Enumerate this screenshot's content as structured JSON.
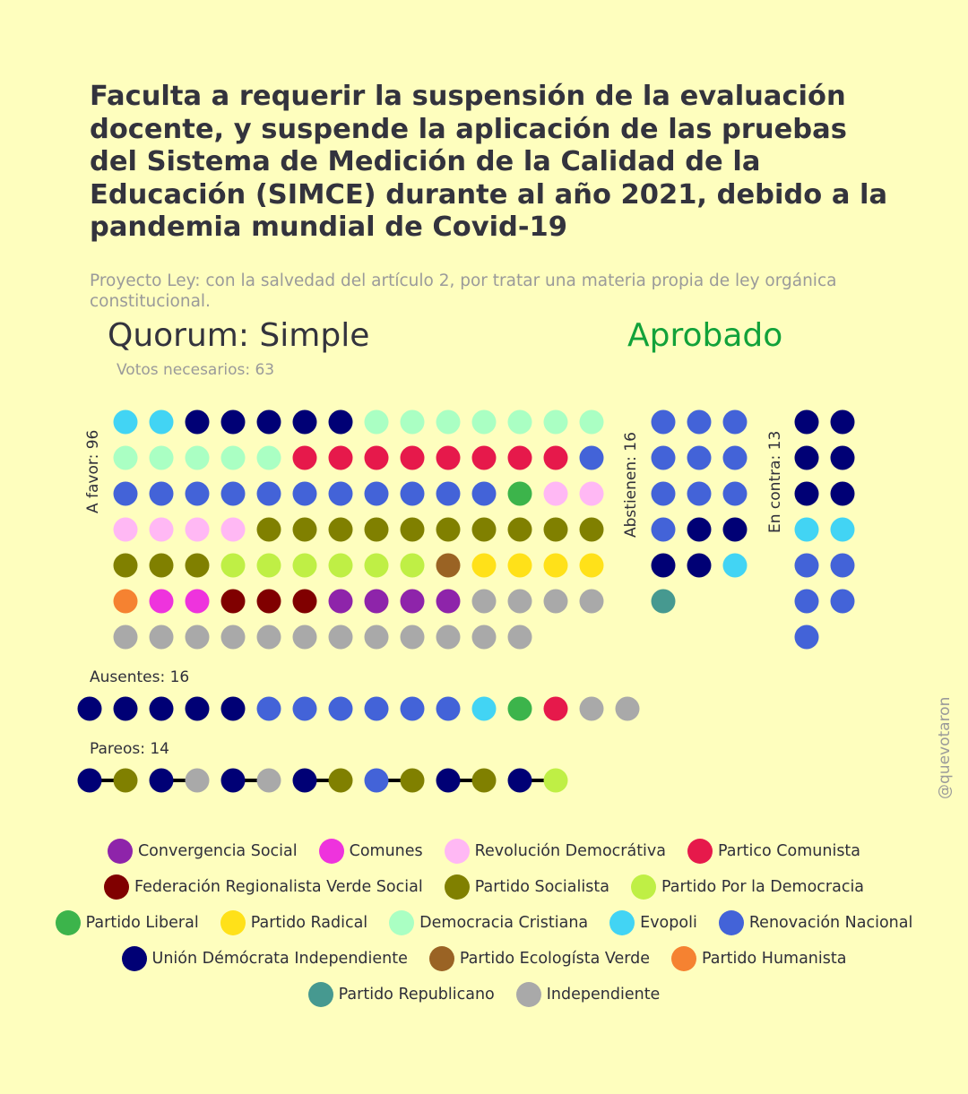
{
  "title": "Faculta a requerir la suspensión de la evaluación docente, y suspende la aplicación de las pruebas del Sistema de Medición de la Calidad de la Educación (SIMCE) durante al año 2021, debido a la pandemia mundial de Covid-19",
  "subtitle": "Proyecto Ley: con la salvedad del artículo 2, por tratar una materia propia de ley orgánica constitucional.",
  "quorum": "Quorum: Simple",
  "result": "Aprobado",
  "result_color": "#12a23a",
  "votes_needed": "Votos necesarios: 63",
  "labels": {
    "favor": "A favor: 96",
    "abstain": "Abstienen: 16",
    "against": "En contra: 13",
    "absent": "Ausentes: 16",
    "pairs": "Pareos: 14"
  },
  "watermark": "@quevotaron",
  "legend": [
    [
      "Convergencia Social",
      "Comunes",
      "Revolución Democrátiva",
      "Partico Comunista"
    ],
    [
      "Federación Regionalista Verde Social",
      "Partido Socialista",
      "Partido Por la Democracia"
    ],
    [
      "Partido Liberal",
      "Partido Radical",
      "Democracia Cristiana",
      "Evopoli",
      "Renovación Nacional"
    ],
    [
      "Unión Démócrata Independiente",
      "Partido Ecologísta Verde",
      "Partido Humanista"
    ],
    [
      "Partido Republicano",
      "Independiente"
    ]
  ],
  "chart_data": {
    "type": "waffle",
    "party_colors": {
      "Convergencia Social": "#8E24AA",
      "Comunes": "#EE33DD",
      "Revolución Democrátiva": "#FFB8F4",
      "Partico Comunista": "#E6194B",
      "Federación Regionalista Verde Social": "#800000",
      "Partido Socialista": "#808000",
      "Partido Por la Democracia": "#BFEF45",
      "Partido Liberal": "#3CB44B",
      "Partido Radical": "#FFE119",
      "Democracia Cristiana": "#AAFFC3",
      "Evopoli": "#42D4F4",
      "Renovación Nacional": "#4363D8",
      "Unión Démócrata Independiente": "#000075",
      "Partido Ecologísta Verde": "#9A6324",
      "Partido Humanista": "#F58231",
      "Partido Republicano": "#469990",
      "Independiente": "#A9A9A9"
    },
    "groups": [
      {
        "label": "A favor: 96",
        "columns": 14,
        "votes": [
          [
            "Evopoli",
            2
          ],
          [
            "Unión Démócrata Independiente",
            5
          ],
          [
            "Democracia Cristiana",
            12
          ],
          [
            "Partico Comunista",
            8
          ],
          [
            "Renovación Nacional",
            12
          ],
          [
            "Partido Liberal",
            1
          ],
          [
            "Revolución Democrátiva",
            6
          ],
          [
            "Partido Socialista",
            13
          ],
          [
            "Partido Por la Democracia",
            6
          ],
          [
            "Partido Ecologísta Verde",
            1
          ],
          [
            "Partido Radical",
            4
          ],
          [
            "Partido Humanista",
            1
          ],
          [
            "Comunes",
            2
          ],
          [
            "Federación Regionalista Verde Social",
            3
          ],
          [
            "Convergencia Social",
            4
          ],
          [
            "Independiente",
            16
          ]
        ]
      },
      {
        "label": "Abstienen: 16",
        "columns": 3,
        "votes": [
          [
            "Renovación Nacional",
            10
          ],
          [
            "Unión Démócrata Independiente",
            4
          ],
          [
            "Evopoli",
            1
          ],
          [
            "Partido Republicano",
            1
          ]
        ]
      },
      {
        "label": "En contra: 13",
        "columns": 2,
        "votes": [
          [
            "Unión Démócrata Independiente",
            6
          ],
          [
            "Evopoli",
            2
          ],
          [
            "Renovación Nacional",
            5
          ]
        ]
      },
      {
        "label": "Ausentes: 16",
        "columns": 16,
        "votes": [
          [
            "Unión Démócrata Independiente",
            5
          ],
          [
            "Renovación Nacional",
            6
          ],
          [
            "Evopoli",
            1
          ],
          [
            "Partido Liberal",
            1
          ],
          [
            "Partico Comunista",
            1
          ],
          [
            "Independiente",
            2
          ]
        ]
      },
      {
        "label": "Pareos: 14",
        "columns": 14,
        "paired": true,
        "votes": [
          [
            "Unión Démócrata Independiente",
            1
          ],
          [
            "Partido Socialista",
            1
          ],
          [
            "Unión Démócrata Independiente",
            1
          ],
          [
            "Independiente",
            1
          ],
          [
            "Unión Démócrata Independiente",
            1
          ],
          [
            "Independiente",
            1
          ],
          [
            "Unión Démócrata Independiente",
            1
          ],
          [
            "Partido Socialista",
            1
          ],
          [
            "Renovación Nacional",
            1
          ],
          [
            "Partido Socialista",
            1
          ],
          [
            "Unión Démócrata Independiente",
            1
          ],
          [
            "Partido Socialista",
            1
          ],
          [
            "Unión Démócrata Independiente",
            1
          ],
          [
            "Partido Por la Democracia",
            1
          ]
        ]
      }
    ]
  }
}
